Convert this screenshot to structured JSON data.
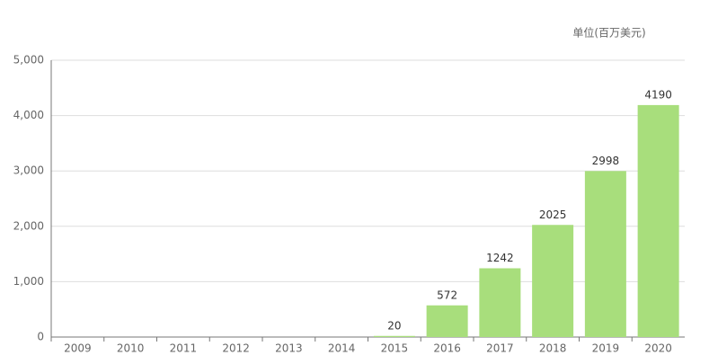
{
  "chart_data": {
    "type": "bar",
    "unit_label": "单位(百万美元)",
    "categories": [
      "2009",
      "2010",
      "2011",
      "2012",
      "2013",
      "2014",
      "2015",
      "2016",
      "2017",
      "2018",
      "2019",
      "2020"
    ],
    "values": [
      null,
      null,
      null,
      null,
      null,
      null,
      20,
      572,
      1242,
      2025,
      2998,
      4190
    ],
    "color": "#a8de7c",
    "ylim": [
      0,
      5000
    ],
    "yticks": [
      0,
      {
        "value": 1000,
        "label": "1,000"
      },
      {
        "value": 2000,
        "label": "2,000"
      },
      {
        "value": 3000,
        "label": "3,000"
      },
      {
        "value": 4000,
        "label": "4,000"
      },
      {
        "value": 5000,
        "label": "5,000"
      }
    ],
    "grid": true
  }
}
